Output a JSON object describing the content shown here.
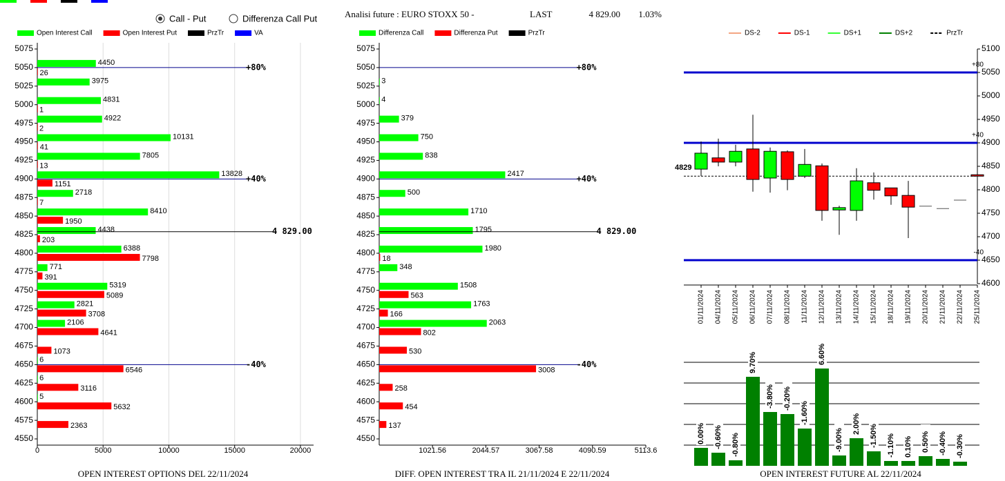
{
  "header": {
    "options": [
      {
        "label": "Call - Put",
        "checked": true
      },
      {
        "label": "Differenza Call Put",
        "checked": false
      }
    ],
    "instrument": "Analisi future : EURO STOXX 50 -",
    "last_label": "LAST",
    "last": "4 829.00",
    "change": "1.03%"
  },
  "chart_data": [
    {
      "type": "hbar",
      "title": "OPEN INTEREST OPTIONS DEL 22/11/2024",
      "categories": [
        5075,
        5050,
        5025,
        5000,
        4975,
        4950,
        4925,
        4900,
        4875,
        4850,
        4825,
        4800,
        4775,
        4750,
        4725,
        4700,
        4675,
        4650,
        4625,
        4600,
        4575,
        4550
      ],
      "series": [
        {
          "name": "Open Interest Call",
          "color": "#00ff00",
          "values": [
            null,
            4450,
            3975,
            4831,
            4922,
            10131,
            7805,
            13828,
            2718,
            8410,
            4438,
            6388,
            771,
            5319,
            2821,
            2106,
            null,
            6,
            6,
            5,
            null,
            null
          ]
        },
        {
          "name": "Open Interest Put",
          "color": "#ff0000",
          "values": [
            null,
            26,
            null,
            1,
            2,
            41,
            13,
            1151,
            7,
            1950,
            203,
            7798,
            391,
            5089,
            3708,
            4641,
            1073,
            6546,
            3116,
            5632,
            2363,
            null
          ]
        }
      ],
      "legend_extra": [
        {
          "name": "PrzTr",
          "color": "#000000"
        },
        {
          "name": "VA",
          "color": "#0000ff"
        }
      ],
      "ylim": [
        4550,
        5075
      ],
      "xlim": [
        0,
        21000
      ],
      "xticks": [
        0,
        5000,
        10000,
        15000,
        20000
      ],
      "grid": true,
      "reference_lines": [
        {
          "label": "+80%",
          "value": 5050,
          "color": "#00008b"
        },
        {
          "label": "+40%",
          "value": 4900,
          "color": "#00008b"
        },
        {
          "label": "4 829.00",
          "value": 4829,
          "color": "#000000"
        },
        {
          "label": "-40%",
          "value": 4650,
          "color": "#00008b"
        }
      ]
    },
    {
      "type": "hbar",
      "title": "DIFF. OPEN INTEREST TRA IL 21/11/2024 E 22/11/2024",
      "categories": [
        5075,
        5050,
        5025,
        5000,
        4975,
        4950,
        4925,
        4900,
        4875,
        4850,
        4825,
        4800,
        4775,
        4750,
        4725,
        4700,
        4675,
        4650,
        4625,
        4600,
        4575,
        4550
      ],
      "series": [
        {
          "name": "Differenza Call",
          "color": "#00ff00",
          "values": [
            null,
            null,
            3,
            4,
            379,
            750,
            838,
            2417,
            500,
            1710,
            1795,
            1980,
            348,
            1508,
            1763,
            2063,
            null,
            null,
            null,
            null,
            null,
            null
          ]
        },
        {
          "name": "Differenza Put",
          "color": "#ff0000",
          "values": [
            null,
            null,
            null,
            null,
            null,
            null,
            null,
            null,
            null,
            null,
            null,
            18,
            null,
            563,
            166,
            802,
            530,
            3008,
            258,
            454,
            137,
            null
          ]
        }
      ],
      "legend_extra": [
        {
          "name": "PrzTr",
          "color": "#000000"
        }
      ],
      "ylim": [
        4550,
        5075
      ],
      "xlim": [
        0,
        5113.6
      ],
      "xticks": [
        1021.56,
        2044.57,
        3067.58,
        4090.59,
        5113.6
      ],
      "grid": false,
      "reference_lines": [
        {
          "label": "+80%",
          "value": 5050,
          "color": "#00008b"
        },
        {
          "label": "+40%",
          "value": 4900,
          "color": "#00008b"
        },
        {
          "label": "4 829.00",
          "value": 4829,
          "color": "#000000"
        },
        {
          "label": "-40%",
          "value": 4650,
          "color": "#00008b"
        }
      ]
    },
    {
      "type": "candlestick",
      "legend": [
        {
          "name": "DS-2",
          "color": "#f4a582"
        },
        {
          "name": "DS-1",
          "color": "#ff0000"
        },
        {
          "name": "DS+1",
          "color": "#33ff33"
        },
        {
          "name": "DS+2",
          "color": "#008000"
        },
        {
          "name": "PrzTr",
          "color": "#000000",
          "dash": true
        }
      ],
      "x": [
        "01/11/2024",
        "04/11/2024",
        "05/11/2024",
        "06/11/2024",
        "07/11/2024",
        "08/11/2024",
        "11/11/2024",
        "12/11/2024",
        "13/11/2024",
        "14/11/2024",
        "15/11/2024",
        "18/11/2024",
        "19/11/2024",
        "20/11/2024",
        "21/11/2024",
        "22/11/2024",
        "25/11/2024"
      ],
      "open": [
        4844,
        4868,
        4859,
        4887,
        4825,
        4881,
        4829,
        4851,
        4757,
        4756,
        4815,
        4804,
        4788,
        4765,
        4760,
        4778,
        4832
      ],
      "high": [
        4903,
        4909,
        4896,
        4960,
        4890,
        4884,
        4887,
        4856,
        4766,
        4846,
        4837,
        4804,
        4819,
        4765,
        4760,
        4778,
        4843
      ],
      "low": [
        4829,
        4850,
        4850,
        4796,
        4794,
        4799,
        4825,
        4734,
        4704,
        4734,
        4779,
        4768,
        4697,
        4765,
        4760,
        4778,
        4819
      ],
      "close": [
        4878,
        4859,
        4882,
        4822,
        4882,
        4822,
        4854,
        4756,
        4762,
        4819,
        4799,
        4787,
        4763,
        4765,
        4760,
        4778,
        4829
      ],
      "ylim": [
        4600,
        5100
      ],
      "yticks": [
        4600,
        4650,
        4700,
        4750,
        4800,
        4850,
        4900,
        4950,
        5000,
        5050,
        5100
      ],
      "reference_lines": [
        {
          "label": "+80",
          "value": 5050,
          "color": "#0000cd"
        },
        {
          "label": "+40",
          "value": 4900,
          "color": "#0000cd"
        },
        {
          "label": "-40",
          "value": 4650,
          "color": "#0000cd"
        },
        {
          "label": "4829",
          "value": 4829,
          "color": "#000000",
          "dash": true
        }
      ]
    },
    {
      "type": "bar",
      "title": "OPEN INTEREST FUTURE AL 22/11/2024",
      "color": "#008000",
      "values": [
        26,
        19,
        8,
        129,
        78,
        75,
        54,
        141,
        15,
        40,
        21,
        7,
        7,
        14,
        10,
        6
      ],
      "bar_labels": [
        "0.00%",
        "-0.60%",
        "-0.80%",
        "9.70%",
        "-3.80%",
        "-0.20%",
        "-1.60%",
        "6.60%",
        "-9.00%",
        "2.00%",
        "-1.50%",
        "-1.10%",
        "0.10%",
        "0.50%",
        "-0.40%",
        "-0.30%"
      ],
      "ylim": [
        0,
        150
      ],
      "gridlines": [
        30,
        60,
        90,
        120,
        150
      ]
    }
  ]
}
